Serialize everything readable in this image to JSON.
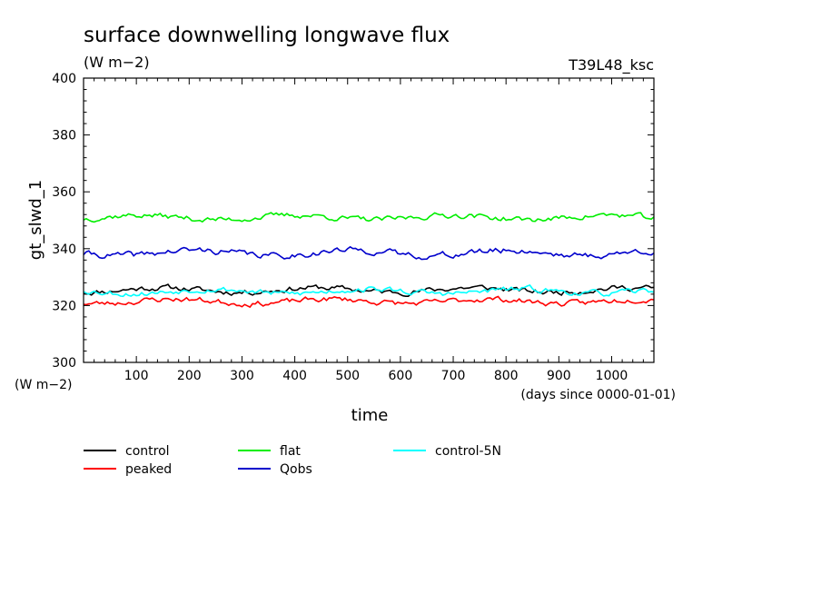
{
  "chart_data": {
    "type": "line",
    "title": "surface downwelling longwave flux",
    "units": "(W m−2)",
    "run_label": "T39L48_ksc",
    "ylabel": "gt_slwd_1",
    "yunits": "(W m−2)",
    "xlabel": "time",
    "xunits": "(days since 0000-01-01)",
    "xlim": [
      0,
      1080
    ],
    "ylim": [
      300,
      400
    ],
    "xticks": [
      100,
      200,
      300,
      400,
      500,
      600,
      700,
      800,
      900,
      1000
    ],
    "yticks": [
      300,
      320,
      340,
      360,
      380,
      400
    ],
    "grid": false,
    "legend_position": "bottom",
    "x_step_days": 5,
    "series": [
      {
        "name": "control",
        "color": "#000000",
        "mean": 325.5,
        "amplitude": 1.0,
        "noise": 0.8,
        "seed": 11
      },
      {
        "name": "peaked",
        "color": "#ff0000",
        "mean": 321.5,
        "amplitude": 1.0,
        "noise": 0.8,
        "seed": 23
      },
      {
        "name": "flat",
        "color": "#00ee00",
        "mean": 351.0,
        "amplitude": 1.0,
        "noise": 0.8,
        "seed": 37
      },
      {
        "name": "Qobs",
        "color": "#0000cc",
        "mean": 338.5,
        "amplitude": 1.2,
        "noise": 0.9,
        "seed": 41
      },
      {
        "name": "control-5N",
        "color": "#00ffff",
        "mean": 325.0,
        "amplitude": 1.0,
        "noise": 0.8,
        "seed": 53
      }
    ]
  }
}
